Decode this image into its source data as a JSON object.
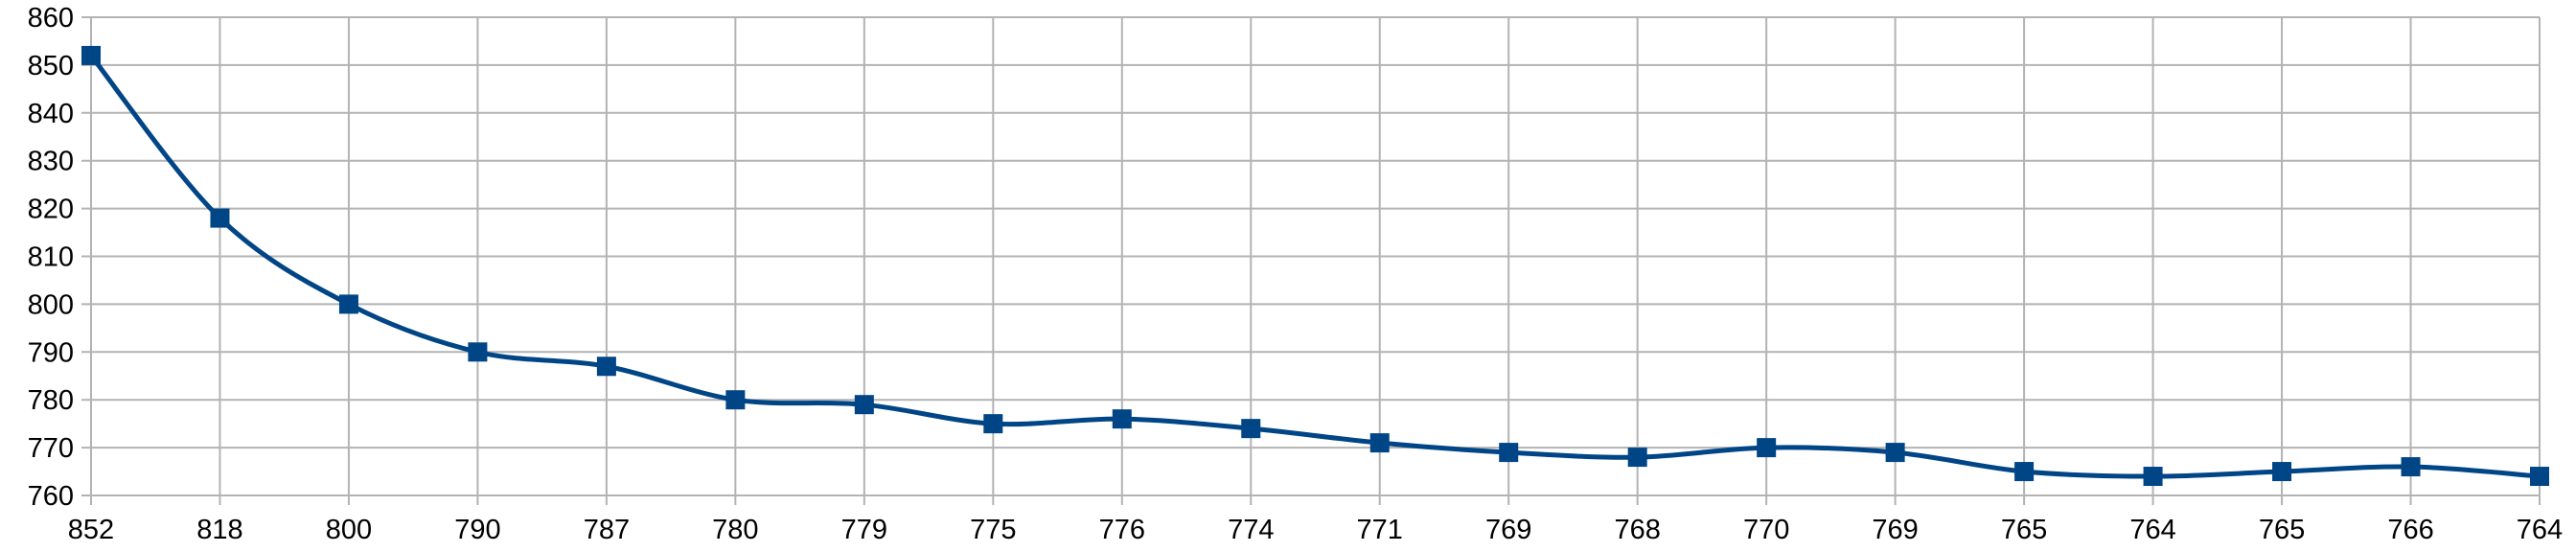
{
  "chart_data": {
    "type": "line",
    "title": "",
    "xlabel": "",
    "ylabel": "",
    "categories": [
      "852",
      "818",
      "800",
      "790",
      "787",
      "780",
      "779",
      "775",
      "776",
      "774",
      "771",
      "769",
      "768",
      "770",
      "769",
      "765",
      "764",
      "765",
      "766",
      "764"
    ],
    "series": [
      {
        "color": "#004586",
        "marker": "square",
        "smooth": true,
        "values": [
          852,
          818,
          800,
          790,
          787,
          780,
          779,
          775,
          776,
          774,
          771,
          769,
          768,
          770,
          769,
          765,
          764,
          765,
          766,
          764
        ]
      }
    ],
    "ylim": [
      760,
      860
    ],
    "yticks": [
      760,
      770,
      780,
      790,
      800,
      810,
      820,
      830,
      840,
      850,
      860
    ],
    "grid": true,
    "legend": "none"
  }
}
